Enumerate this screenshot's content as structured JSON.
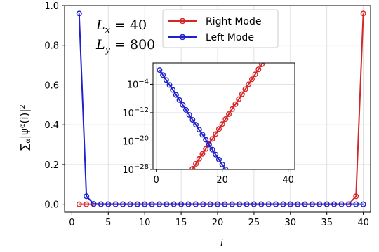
{
  "chart_data": [
    {
      "type": "line",
      "xlabel": "i",
      "ylabel_parts": {
        "sum": "∑",
        "sub": "α",
        "body": "|ψ",
        "sup": "α",
        "tail": "(i)|",
        "pow": "2"
      },
      "xlim": [
        -1,
        41
      ],
      "ylim": [
        -0.04,
        1.0
      ],
      "xticks": [
        "0",
        "5",
        "10",
        "15",
        "20",
        "25",
        "30",
        "35",
        "40"
      ],
      "yticks": [
        "0.0",
        "0.2",
        "0.4",
        "0.6",
        "0.8",
        "1.0"
      ],
      "grid": true,
      "legend_placement": "top-center",
      "annotations": [
        {
          "var": "L",
          "sub": "x",
          "rest": " = 40"
        },
        {
          "var": "L",
          "sub": "y",
          "rest": " = 800"
        }
      ],
      "x": [
        1,
        2,
        3,
        4,
        5,
        6,
        7,
        8,
        9,
        10,
        11,
        12,
        13,
        14,
        15,
        16,
        17,
        18,
        19,
        20,
        21,
        22,
        23,
        24,
        25,
        26,
        27,
        28,
        29,
        30,
        31,
        32,
        33,
        34,
        35,
        36,
        37,
        38,
        39,
        40
      ],
      "series": [
        {
          "name": "Right Mode",
          "color": "#d62728",
          "values": [
            0,
            0,
            0,
            0,
            0,
            0,
            0,
            0,
            0,
            0,
            0,
            0,
            0,
            0,
            0,
            0,
            0,
            0,
            0,
            0,
            0,
            0,
            0,
            0,
            0,
            0,
            0,
            0,
            0,
            0,
            0,
            0,
            0,
            0,
            0,
            0,
            0,
            0,
            0.04,
            0.96
          ]
        },
        {
          "name": "Left Mode",
          "color": "#1f22cc",
          "values": [
            0.96,
            0.04,
            0.002,
            0,
            0,
            0,
            0,
            0,
            0,
            0,
            0,
            0,
            0,
            0,
            0,
            0,
            0,
            0,
            0,
            0,
            0,
            0,
            0,
            0,
            0,
            0,
            0,
            0,
            0,
            0,
            0,
            0,
            0,
            0,
            0,
            0,
            0,
            0,
            0,
            0
          ]
        }
      ]
    },
    {
      "type": "line",
      "yscale": "log",
      "xlim": [
        -1,
        42
      ],
      "ylim_exp": [
        -28,
        2
      ],
      "xticks": [
        "0",
        "20",
        "40"
      ],
      "yticks": [
        {
          "base": "10",
          "exp": "−4"
        },
        {
          "base": "10",
          "exp": "−12"
        },
        {
          "base": "10",
          "exp": "−20"
        },
        {
          "base": "10",
          "exp": "−28"
        }
      ],
      "grid": true,
      "x": [
        1,
        2,
        3,
        4,
        5,
        6,
        7,
        8,
        9,
        10,
        11,
        12,
        13,
        14,
        15,
        16,
        17,
        18,
        19,
        20,
        21,
        22,
        23,
        24,
        25,
        26,
        27,
        28,
        29,
        30,
        31,
        32,
        33,
        34,
        35,
        36,
        37,
        38,
        39,
        40
      ],
      "series": [
        {
          "name": "Right Mode",
          "color": "#d62728",
          "log10_values": [
            -41.8,
            -40.4,
            -39,
            -37.6,
            -36.2,
            -34.8,
            -33.4,
            -32,
            -30.6,
            -29.2,
            -27.8,
            -26.4,
            -25,
            -23.6,
            -22.2,
            -20.8,
            -19.4,
            -18,
            -16.6,
            -15.2,
            -13.8,
            -12.4,
            -11,
            -9.6,
            -8.2,
            -6.8,
            -5.4,
            -4,
            -2.6,
            -1.2,
            0.2,
            1.6,
            3,
            4.4,
            5.8,
            7.2,
            8.6,
            10,
            11.4,
            12.8
          ]
        },
        {
          "name": "Left Mode",
          "color": "#1f22cc",
          "log10_values": [
            0,
            -1.4,
            -2.8,
            -4.2,
            -5.6,
            -7,
            -8.4,
            -9.8,
            -11.2,
            -12.6,
            -14,
            -15.4,
            -16.8,
            -18.2,
            -19.6,
            -21,
            -22.4,
            -23.8,
            -25.2,
            -26.6,
            -28,
            -29.4,
            -30.8,
            -32.2,
            -33.6,
            -35,
            -36.4,
            -37.8,
            -39.2,
            -40.6,
            -42,
            -43.4,
            -44.8,
            -46.2,
            -47.6,
            -49,
            -50.4,
            -51.8,
            -53.2,
            -54.6
          ]
        }
      ]
    }
  ]
}
